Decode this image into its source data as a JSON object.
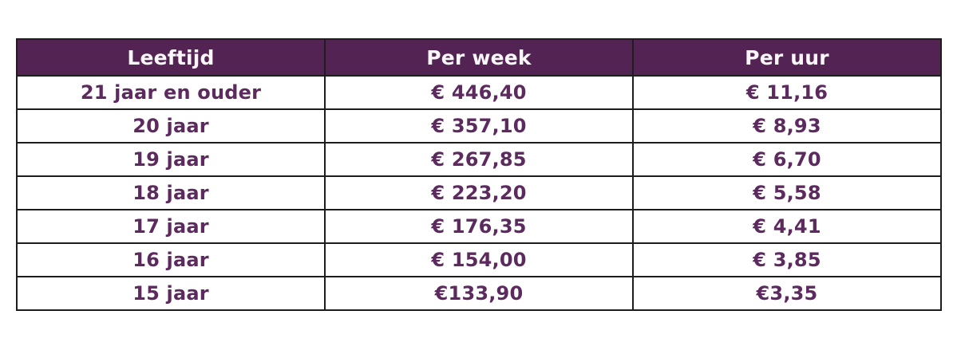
{
  "colors": {
    "header_bg": "#522353",
    "header_text": "#faf6fa",
    "body_text": "#5d2a5f",
    "border": "#1d1d1b",
    "row_bg": "#ffffff",
    "page_bg": "#ffffff"
  },
  "table": {
    "columns": [
      "Leeftijd",
      "Per week",
      "Per uur"
    ],
    "rows": [
      [
        "21 jaar en ouder",
        "€ 446,40",
        "€ 11,16"
      ],
      [
        "20 jaar",
        "€ 357,10",
        "€ 8,93"
      ],
      [
        "19 jaar",
        "€ 267,85",
        "€ 6,70"
      ],
      [
        "18 jaar",
        "€ 223,20",
        "€ 5,58"
      ],
      [
        "17 jaar",
        "€ 176,35",
        "€ 4,41"
      ],
      [
        "16 jaar",
        "€ 154,00",
        "€ 3,85"
      ],
      [
        "15 jaar",
        "€133,90",
        "€3,35"
      ]
    ]
  },
  "chart_data": {
    "type": "table",
    "title": "",
    "columns": [
      "Leeftijd",
      "Per week",
      "Per uur"
    ],
    "rows": [
      {
        "leeftijd": "21 jaar en ouder",
        "per_week": "€ 446,40",
        "per_uur": "€ 11,16"
      },
      {
        "leeftijd": "20 jaar",
        "per_week": "€ 357,10",
        "per_uur": "€ 8,93"
      },
      {
        "leeftijd": "19 jaar",
        "per_week": "€ 267,85",
        "per_uur": "€ 6,70"
      },
      {
        "leeftijd": "18 jaar",
        "per_week": "€ 223,20",
        "per_uur": "€ 5,58"
      },
      {
        "leeftijd": "17 jaar",
        "per_week": "€ 176,35",
        "per_uur": "€ 4,41"
      },
      {
        "leeftijd": "16 jaar",
        "per_week": "€ 154,00",
        "per_uur": "€ 3,85"
      },
      {
        "leeftijd": "15 jaar",
        "per_week": "€133,90",
        "per_uur": "€3,35"
      }
    ],
    "layout": {
      "header_background": "#522353",
      "header_text_color": "#faf6fa",
      "cell_text_color": "#5d2a5f",
      "border_color": "#1d1d1b",
      "alignment": "center"
    }
  }
}
